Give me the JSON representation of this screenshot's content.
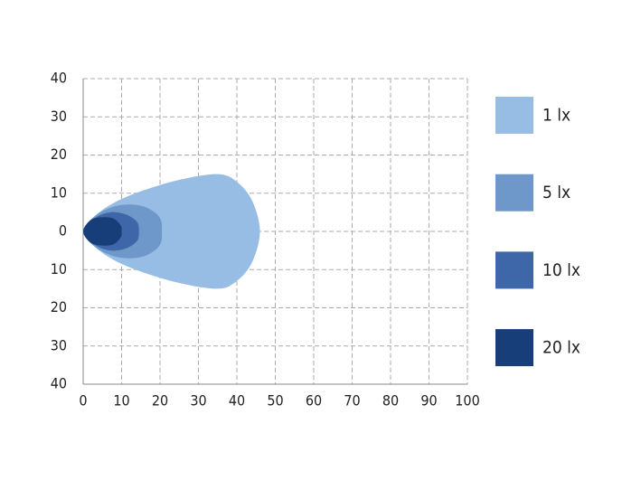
{
  "chart_data": {
    "type": "contour",
    "xlim": [
      0,
      100
    ],
    "ylim": [
      -40,
      40
    ],
    "xticks": [
      0,
      10,
      20,
      30,
      40,
      50,
      60,
      70,
      80,
      90,
      100
    ],
    "yticks": [
      {
        "value": -40,
        "label": "40"
      },
      {
        "value": -30,
        "label": "30"
      },
      {
        "value": -20,
        "label": "20"
      },
      {
        "value": -10,
        "label": "10"
      },
      0,
      10,
      20,
      30,
      40
    ],
    "grid": true,
    "legend": "right",
    "series": [
      {
        "name": "1 lx",
        "color": "#98bde4",
        "x": [
          0,
          3,
          8,
          15,
          25,
          35,
          40,
          44,
          46,
          44,
          40,
          35,
          25,
          15,
          8,
          3
        ],
        "y": [
          0,
          4,
          7.5,
          10.5,
          13.5,
          15,
          13,
          8,
          0,
          -8,
          -13,
          -15,
          -13.5,
          -10.5,
          -7.5,
          -4
        ]
      },
      {
        "name": "5 lx",
        "color": "#6e98c9",
        "x": [
          0,
          3,
          8,
          13,
          17,
          20,
          20.5,
          20,
          17,
          13,
          8,
          3
        ],
        "y": [
          0,
          4,
          6.5,
          7,
          6,
          3.5,
          0,
          -3.5,
          -6,
          -7,
          -6.5,
          -4
        ]
      },
      {
        "name": "10 lx",
        "color": "#3d67a8",
        "x": [
          0,
          3,
          7,
          11,
          14,
          14.5,
          14,
          11,
          7,
          3
        ],
        "y": [
          0,
          3.5,
          5,
          4.5,
          2.5,
          0,
          -2.5,
          -4.5,
          -5,
          -3.5
        ]
      },
      {
        "name": "20 lx",
        "color": "#173e78",
        "x": [
          0,
          2,
          5,
          8,
          9.8,
          10,
          9.8,
          8,
          5,
          2
        ],
        "y": [
          0,
          3,
          3.7,
          3.3,
          1.5,
          0,
          -1.5,
          -3.3,
          -3.7,
          -3
        ]
      }
    ]
  }
}
